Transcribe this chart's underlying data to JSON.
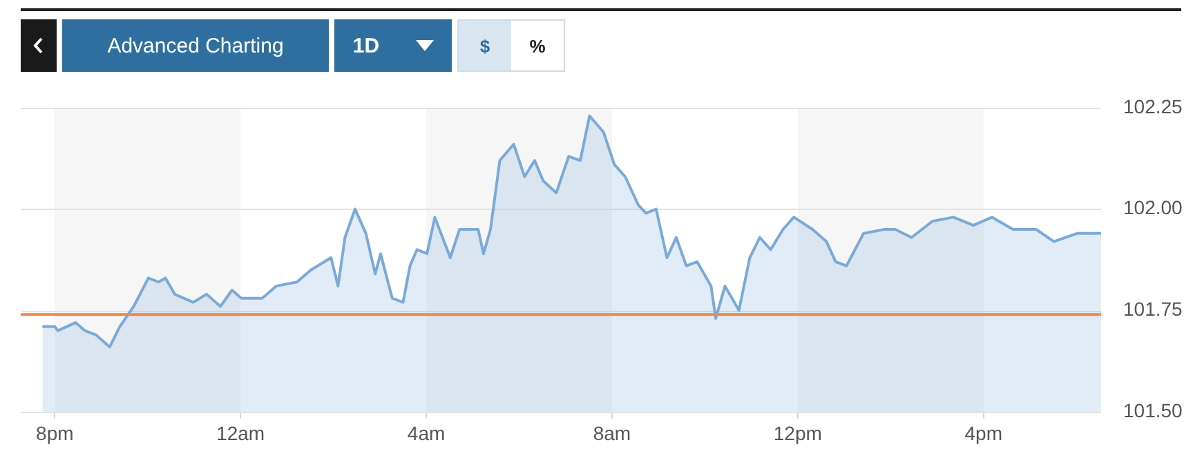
{
  "chart_data": {
    "type": "area",
    "x": [
      "--01-04T19:44",
      "--01-04T20:00",
      "--01-04T20:04",
      "--01-04T20:27",
      "--01-04T20:39",
      "--01-04T20:53",
      "--01-04T21:11",
      "--01-04T21:24",
      "--01-04T21:42",
      "--01-04T22:01",
      "--01-04T22:14",
      "--01-04T22:23",
      "--01-04T22:35",
      "--01-04T22:59",
      "--01-04T23:16",
      "--01-04T23:34",
      "--01-04T23:49",
      "--01-05T00:01",
      "--01-05T00:28",
      "--01-05T00:46",
      "--01-05T01:13",
      "--01-05T01:31",
      "--01-05T01:57",
      "--01-05T02:06",
      "--01-05T02:15",
      "--01-05T02:28",
      "--01-05T02:42",
      "--01-05T02:54",
      "--01-05T03:01",
      "--01-05T03:16",
      "--01-05T03:30",
      "--01-05T03:39",
      "--01-05T03:48",
      "--01-05T04:01",
      "--01-05T04:11",
      "--01-05T04:31",
      "--01-05T04:43",
      "--01-05T04:56",
      "--01-05T05:07",
      "--01-05T05:14",
      "--01-05T05:23",
      "--01-05T05:35",
      "--01-05T05:53",
      "--01-05T06:07",
      "--01-05T06:20",
      "--01-05T06:31",
      "--01-05T06:48",
      "--01-05T07:04",
      "--01-05T07:19",
      "--01-05T07:31",
      "--01-05T07:49",
      "--01-05T08:03",
      "--01-05T08:17",
      "--01-05T08:34",
      "--01-05T08:44",
      "--01-05T08:57",
      "--01-05T09:11",
      "--01-05T09:23",
      "--01-05T09:36",
      "--01-05T09:50",
      "--01-05T10:08",
      "--01-05T10:14",
      "--01-05T10:26",
      "--01-05T10:44",
      "--01-05T10:58",
      "--01-05T11:11",
      "--01-05T11:25",
      "--01-05T11:41",
      "--01-05T11:55",
      "--01-05T12:19",
      "--01-05T12:37",
      "--01-05T12:49",
      "--01-05T13:03",
      "--01-05T13:25",
      "--01-05T13:52",
      "--01-05T14:06",
      "--01-05T14:27",
      "--01-05T14:54",
      "--01-05T15:21",
      "--01-05T15:47",
      "--01-05T16:11",
      "--01-05T16:38",
      "--01-05T17:08",
      "--01-05T17:31",
      "--01-05T18:01",
      "--01-05T18:32"
    ],
    "series": [
      {
        "color": "#7aaad8",
        "values": [
          101.71,
          101.71,
          101.7,
          101.72,
          101.7,
          101.69,
          101.66,
          101.71,
          101.76,
          101.83,
          101.82,
          101.83,
          101.79,
          101.77,
          101.79,
          101.76,
          101.8,
          101.78,
          101.78,
          101.81,
          101.82,
          101.85,
          101.88,
          101.81,
          101.93,
          102.0,
          101.94,
          101.84,
          101.89,
          101.78,
          101.77,
          101.86,
          101.9,
          101.89,
          101.98,
          101.88,
          101.95,
          101.95,
          101.95,
          101.89,
          101.95,
          102.12,
          102.16,
          102.08,
          102.12,
          102.07,
          102.04,
          102.13,
          102.12,
          102.23,
          102.19,
          102.11,
          102.08,
          102.01,
          101.99,
          102.0,
          101.88,
          101.93,
          101.86,
          101.87,
          101.81,
          101.73,
          101.81,
          101.75,
          101.88,
          101.93,
          101.9,
          101.95,
          101.98,
          101.95,
          101.92,
          101.87,
          101.86,
          101.94,
          101.95,
          101.95,
          101.93,
          101.97,
          101.98,
          101.96,
          101.98,
          101.95,
          101.95,
          101.92,
          101.94,
          101.94
        ]
      }
    ],
    "xlim": [
      "--01-04T19:16",
      "--01-05T18:32"
    ],
    "xticks": [
      {
        "value": "--01-04T20:00",
        "label": "8pm"
      },
      {
        "value": "--01-05T00:00",
        "label": "12am"
      },
      {
        "value": "--01-05T04:00",
        "label": "4am"
      },
      {
        "value": "--01-05T08:00",
        "label": "8am"
      },
      {
        "value": "--01-05T12:00",
        "label": "12pm"
      },
      {
        "value": "--01-05T16:00",
        "label": "4pm"
      }
    ],
    "ylim": [
      101.5,
      102.25
    ],
    "yticks": [
      {
        "value": 101.5,
        "label": "101.50"
      },
      {
        "value": 101.75,
        "label": "101.75"
      },
      {
        "value": 102,
        "label": "102.00"
      },
      {
        "value": 102.25,
        "label": "102.25"
      }
    ],
    "grid": "y",
    "legend": false,
    "ref_lines": [
      {
        "axis": "y",
        "value": 101.74,
        "color": "#e8894f"
      }
    ],
    "bands": [
      {
        "axis": "x",
        "from": "--01-04T20:00",
        "to": "--01-05T00:00",
        "color": "#f6f6f6"
      },
      {
        "axis": "x",
        "from": "--01-05T04:00",
        "to": "--01-05T08:00",
        "color": "#f6f6f6"
      },
      {
        "axis": "x",
        "from": "--01-05T12:00",
        "to": "--01-05T16:00",
        "color": "#f6f6f6"
      }
    ],
    "annotations": [
      "Advanced Charting",
      "1D",
      "$",
      "%"
    ]
  }
}
